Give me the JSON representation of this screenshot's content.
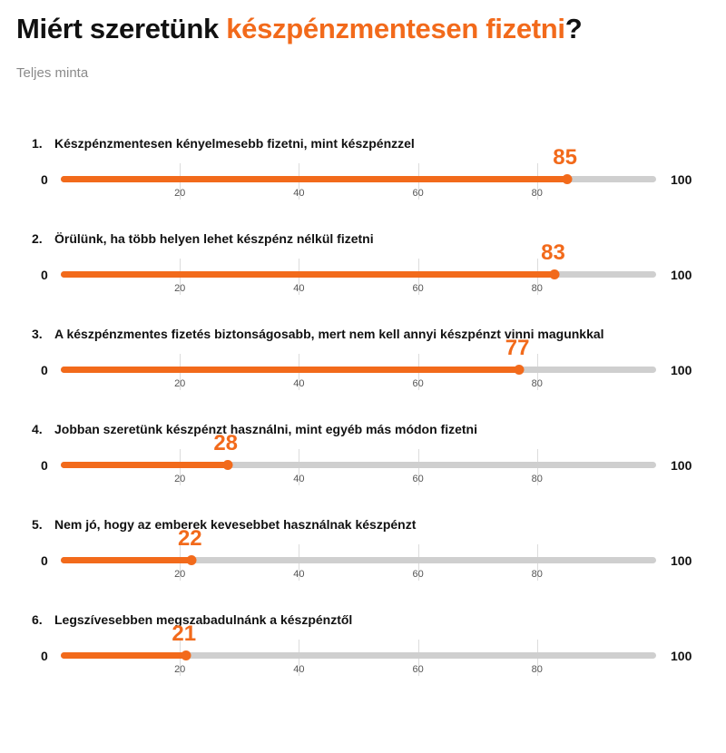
{
  "title": {
    "prefix": "Miért szeretünk ",
    "highlight": "készpénzmentesen fizetni",
    "suffix": "?"
  },
  "subtitle": "Teljes minta",
  "colors": {
    "accent": "#f26a1b",
    "track": "#cfcfcf",
    "text": "#111111"
  },
  "chart_data": {
    "type": "bar",
    "orientation": "horizontal",
    "subtitle": "Teljes minta",
    "xlim": [
      0,
      100
    ],
    "scale_min_label": "0",
    "scale_max_label": "100",
    "ticks": [
      "20",
      "40",
      "60",
      "80"
    ],
    "grid": true,
    "items": [
      {
        "num": "1.",
        "label": "Készpénzmentesen kényelmesebb fizetni, mint készpénzzel",
        "value": 85
      },
      {
        "num": "2.",
        "label": "Örülünk, ha több helyen lehet készpénz nélkül fizetni",
        "value": 83
      },
      {
        "num": "3.",
        "label": "A készpénzmentes fizetés biztonságosabb, mert nem kell annyi készpénzt vinni magunkkal",
        "value": 77
      },
      {
        "num": "4.",
        "label": "Jobban szeretünk készpénzt használni, mint egyéb más módon fizetni",
        "value": 28
      },
      {
        "num": "5.",
        "label": "Nem jó, hogy az emberek kevesebbet használnak készpénzt",
        "value": 22
      },
      {
        "num": "6.",
        "label": "Legszívesebben megszabadulnánk a készpénztől",
        "value": 21
      }
    ]
  }
}
